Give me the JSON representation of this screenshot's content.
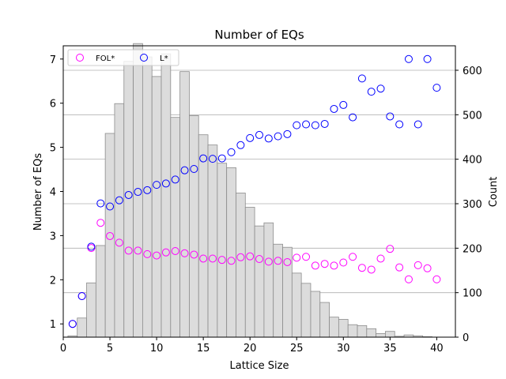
{
  "chart_data": {
    "type": "bar+scatter",
    "title": "Number of EQs",
    "xlabel": "Lattice Size",
    "ylabel_left": "Number of EQs",
    "ylabel_right": "Count",
    "xlim": [
      0,
      42
    ],
    "ylim_left": [
      0.7,
      7.3
    ],
    "ylim_right": [
      0,
      655
    ],
    "x_ticks": [
      0,
      5,
      10,
      15,
      20,
      25,
      30,
      35,
      40
    ],
    "y_left_ticks": [
      1,
      2,
      3,
      4,
      5,
      6,
      7
    ],
    "y_right_ticks": [
      0,
      100,
      200,
      300,
      400,
      500,
      600
    ],
    "grid": "horizontal on right axis ticks",
    "legend_position": "top-left",
    "histogram": {
      "axis": "right",
      "color": "#dcdcdc",
      "edge_color": "#8c8c8c",
      "x": [
        1,
        2,
        3,
        4,
        5,
        6,
        7,
        8,
        9,
        10,
        11,
        12,
        13,
        14,
        15,
        16,
        17,
        18,
        19,
        20,
        21,
        22,
        23,
        24,
        25,
        26,
        27,
        28,
        29,
        30,
        31,
        32,
        33,
        34,
        35,
        36,
        37,
        38,
        39,
        40
      ],
      "counts": [
        3,
        43,
        122,
        206,
        458,
        525,
        620,
        660,
        630,
        586,
        637,
        494,
        597,
        498,
        455,
        432,
        391,
        381,
        324,
        292,
        250,
        257,
        209,
        202,
        144,
        121,
        103,
        78,
        45,
        40,
        28,
        26,
        19,
        8,
        13,
        2,
        5,
        3,
        1,
        0
      ]
    },
    "series": [
      {
        "name": "FOL*",
        "axis": "left",
        "color": "#ff00ff",
        "marker": "hollow-circle",
        "x": [
          1,
          2,
          3,
          4,
          5,
          6,
          7,
          8,
          9,
          10,
          11,
          12,
          13,
          14,
          15,
          16,
          17,
          18,
          19,
          20,
          21,
          22,
          23,
          24,
          25,
          26,
          27,
          28,
          29,
          30,
          31,
          32,
          33,
          34,
          35,
          36,
          37,
          38,
          39,
          40
        ],
        "y": [
          1.0,
          1.63,
          2.72,
          3.29,
          2.99,
          2.84,
          2.66,
          2.66,
          2.58,
          2.55,
          2.62,
          2.65,
          2.6,
          2.57,
          2.48,
          2.48,
          2.45,
          2.43,
          2.51,
          2.53,
          2.47,
          2.41,
          2.43,
          2.4,
          2.5,
          2.52,
          2.32,
          2.36,
          2.32,
          2.39,
          2.52,
          2.27,
          2.23,
          2.48,
          2.7,
          2.28,
          2.01,
          2.33,
          2.26,
          2.01
        ]
      },
      {
        "name": "L*",
        "axis": "left",
        "color": "#0000ff",
        "marker": "hollow-circle",
        "x": [
          1,
          2,
          3,
          4,
          5,
          6,
          7,
          8,
          9,
          10,
          11,
          12,
          13,
          14,
          15,
          16,
          17,
          18,
          19,
          20,
          21,
          22,
          23,
          24,
          25,
          26,
          27,
          28,
          29,
          30,
          31,
          32,
          33,
          34,
          35,
          36,
          37,
          38,
          39,
          40
        ],
        "y": [
          1.0,
          1.63,
          2.75,
          3.73,
          3.66,
          3.8,
          3.92,
          3.99,
          4.03,
          4.15,
          4.18,
          4.27,
          4.48,
          4.51,
          4.75,
          4.74,
          4.75,
          4.89,
          5.05,
          5.21,
          5.28,
          5.2,
          5.25,
          5.3,
          5.5,
          5.52,
          5.5,
          5.53,
          5.87,
          5.96,
          5.68,
          6.56,
          6.26,
          6.33,
          5.7,
          5.52,
          7.0,
          5.52,
          7.0,
          6.35
        ]
      }
    ]
  }
}
